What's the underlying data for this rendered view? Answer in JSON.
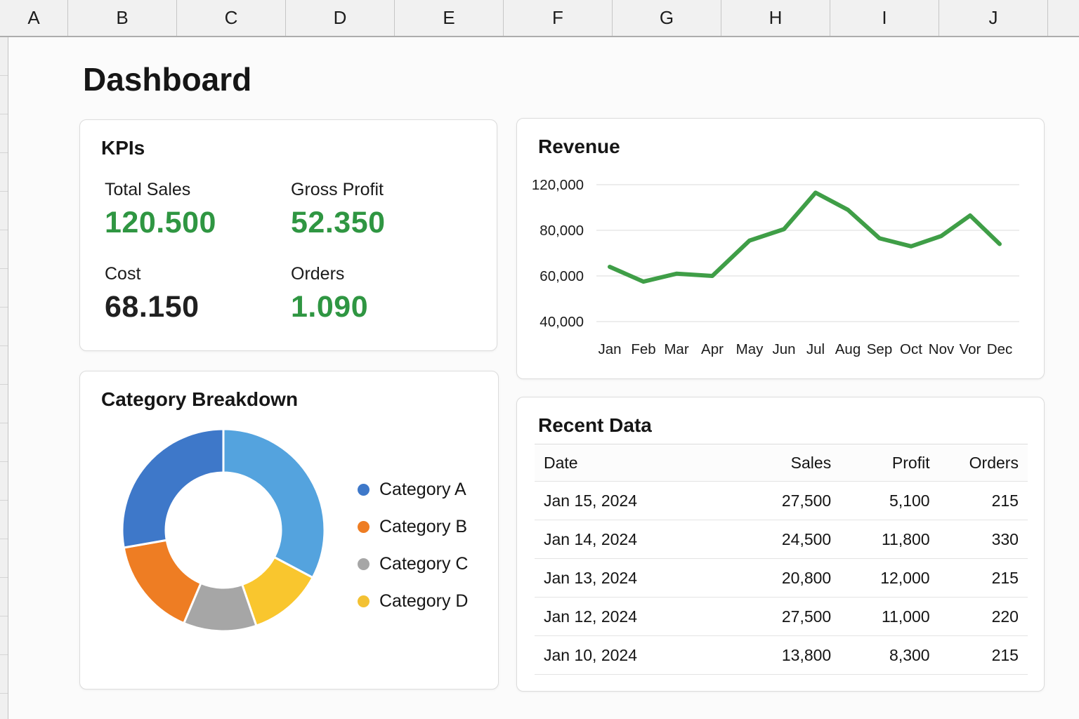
{
  "spreadsheet": {
    "column_headers": [
      "A",
      "B",
      "C",
      "D",
      "E",
      "F",
      "G",
      "H",
      "I",
      "J"
    ]
  },
  "page": {
    "title": "Dashboard"
  },
  "kpis": {
    "title": "KPIs",
    "items": [
      {
        "label": "Total Sales",
        "value": "120.500",
        "value_color": "#2f9642"
      },
      {
        "label": "Gross Profit",
        "value": "52.350",
        "value_color": "#2f9642"
      },
      {
        "label": "Cost",
        "value": "68.150",
        "value_color": "#202020"
      },
      {
        "label": "Orders",
        "value": "1.090",
        "value_color": "#2f9642"
      }
    ]
  },
  "chart_data": [
    {
      "type": "line",
      "title": "Revenue",
      "x": [
        "Jan",
        "Feb",
        "Mar",
        "Apr",
        "May",
        "Jun",
        "Jul",
        "Aug",
        "Sep",
        "Oct",
        "Nov",
        "Vor",
        "Dec"
      ],
      "series": [
        {
          "name": "Revenue",
          "values": [
            64000,
            57500,
            61000,
            60000,
            75500,
            81000,
            113000,
            98000,
            76500,
            73000,
            77500,
            93000,
            74000
          ]
        }
      ],
      "y_tick_labels": [
        "120,000",
        "80,000",
        "60,000",
        "40,000"
      ],
      "y_tick_values": [
        120000,
        80000,
        60000,
        40000
      ],
      "grid": true,
      "legend_position": "none",
      "line_color": "#3f9e47",
      "gridline_color": "#e7e7e7"
    },
    {
      "type": "pie",
      "title": "Category Breakdown",
      "subtype": "donut",
      "slices": [
        {
          "label": "Category A (light segment)",
          "color": "#54a3de",
          "angle_deg": 118,
          "fraction": 0.328
        },
        {
          "label": "Category D segment",
          "color": "#f9c62e",
          "angle_deg": 43,
          "fraction": 0.119
        },
        {
          "label": "Category C segment",
          "color": "#a6a6a6",
          "angle_deg": 42,
          "fraction": 0.117
        },
        {
          "label": "Category B segment",
          "color": "#ee7d23",
          "angle_deg": 57,
          "fraction": 0.158
        },
        {
          "label": "Category A segment",
          "color": "#3e78c9",
          "angle_deg": 100,
          "fraction": 0.278
        }
      ],
      "legend": [
        {
          "label": "Category A",
          "color": "#3e78c9"
        },
        {
          "label": "Category B",
          "color": "#ee7d23"
        },
        {
          "label": "Category C",
          "color": "#a6a6a6"
        },
        {
          "label": "Category D",
          "color": "#f3c133"
        }
      ],
      "legend_position": "right"
    }
  ],
  "recent": {
    "title": "Recent Data",
    "columns": [
      "Date",
      "Sales",
      "Profit",
      "Orders"
    ],
    "rows": [
      [
        "Jan 15, 2024",
        "27,500",
        "5,100",
        "215"
      ],
      [
        "Jan 14, 2024",
        "24,500",
        "11,800",
        "330"
      ],
      [
        "Jan 13, 2024",
        "20,800",
        "12,000",
        "215"
      ],
      [
        "Jan 12, 2024",
        "27,500",
        "11,000",
        "220"
      ],
      [
        "Jan 10, 2024",
        "13,800",
        "8,300",
        "215"
      ]
    ]
  }
}
